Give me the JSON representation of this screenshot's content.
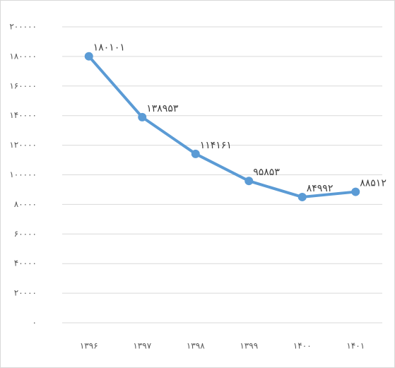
{
  "chart_data": {
    "type": "line",
    "categories": [
      "۱۳۹۶",
      "۱۳۹۷",
      "۱۳۹۸",
      "۱۳۹۹",
      "۱۴۰۰",
      "۱۴۰۱"
    ],
    "values": [
      180101,
      138953,
      114161,
      95853,
      84992,
      88512
    ],
    "value_labels": [
      "۱۸۰۱۰۱",
      "۱۳۸۹۵۳",
      "۱۱۴۱۶۱",
      "۹۵۸۵۳",
      "۸۴۹۹۲",
      "۸۸۵۱۲"
    ],
    "color": "#5b9bd5",
    "ylim": [
      0,
      200000
    ],
    "yticks": [
      {
        "value": 0,
        "label": "۰"
      },
      {
        "value": 20000,
        "label": "۲۰۰۰۰"
      },
      {
        "value": 40000,
        "label": "۴۰۰۰۰"
      },
      {
        "value": 60000,
        "label": "۶۰۰۰۰"
      },
      {
        "value": 80000,
        "label": "۸۰۰۰۰"
      },
      {
        "value": 100000,
        "label": "۱۰۰۰۰۰"
      },
      {
        "value": 120000,
        "label": "۱۲۰۰۰۰"
      },
      {
        "value": 140000,
        "label": "۱۴۰۰۰۰"
      },
      {
        "value": 160000,
        "label": "۱۶۰۰۰۰"
      },
      {
        "value": 180000,
        "label": "۱۸۰۰۰۰"
      },
      {
        "value": 200000,
        "label": "۲۰۰۰۰۰"
      }
    ],
    "grid": true
  }
}
